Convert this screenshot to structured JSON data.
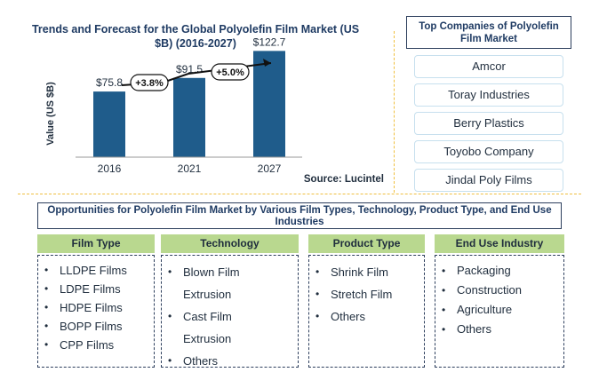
{
  "chart_data": {
    "type": "bar",
    "title": "Trends and Forecast for the Global Polyolefin Film Market (US $B) (2016-2027)",
    "ylabel": "Value (US $B)",
    "categories": [
      "2016",
      "2021",
      "2027"
    ],
    "values": [
      75.8,
      91.5,
      122.7
    ],
    "value_labels": [
      "$75.8",
      "$91.5",
      "$122.7"
    ],
    "growth_labels": [
      "+3.8%",
      "+5.0%"
    ],
    "ylim": [
      0,
      160
    ],
    "source": "Source: Lucintel",
    "bar_color": "#1f5c8b"
  },
  "companies": {
    "title": "Top Companies of Polyolefin Film Market",
    "items": [
      "Amcor",
      "Toray Industries",
      "Berry Plastics",
      "Toyobo Company",
      "Jindal Poly Films"
    ]
  },
  "opportunities": {
    "title": "Opportunities for Polyolefin Film Market by Various Film Types, Technology, Product Type, and End Use Industries",
    "categories": [
      {
        "name": "Film Type",
        "items": [
          "LLDPE Films",
          "LDPE Films",
          "HDPE Films",
          "BOPP Films",
          "CPP Films"
        ]
      },
      {
        "name": "Technology",
        "items": [
          "Blown Film Extrusion",
          "Cast Film Extrusion",
          "Others"
        ]
      },
      {
        "name": "Product  Type",
        "items": [
          "Shrink Film",
          "Stretch Film",
          "Others"
        ]
      },
      {
        "name": "End Use Industry",
        "items": [
          "Packaging",
          "Construction",
          "Agriculture",
          "Others"
        ]
      }
    ]
  },
  "colors": {
    "accent": "#b9d88f",
    "separator": "#f0c040",
    "border": "#2c3e5c",
    "title": "#1f3b63"
  }
}
